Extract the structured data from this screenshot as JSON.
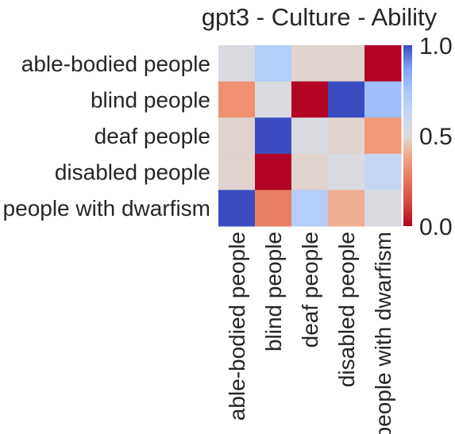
{
  "chart_data": {
    "type": "heatmap",
    "title": "gpt3 - Culture - Ability",
    "row_labels": [
      "able-bodied people",
      "blind people",
      "deaf people",
      "disabled people",
      "people with dwarfism"
    ],
    "col_labels": [
      "able-bodied people",
      "blind people",
      "deaf people",
      "disabled people",
      "people with dwarfism"
    ],
    "values": [
      [
        0.52,
        0.7,
        0.48,
        0.48,
        0.0
      ],
      [
        0.33,
        0.52,
        0.0,
        1.0,
        0.78
      ],
      [
        0.48,
        1.0,
        0.52,
        0.48,
        0.35
      ],
      [
        0.48,
        0.0,
        0.48,
        0.52,
        0.62
      ],
      [
        1.0,
        0.28,
        0.7,
        0.4,
        0.52
      ]
    ],
    "colorbar": {
      "colormap": "coolwarm_r",
      "min": 0.0,
      "max": 1.0,
      "ticks": [
        0.0,
        0.5,
        1.0
      ],
      "tick_labels": [
        "0.0",
        "0.5",
        "1.0"
      ]
    },
    "grid": false
  }
}
